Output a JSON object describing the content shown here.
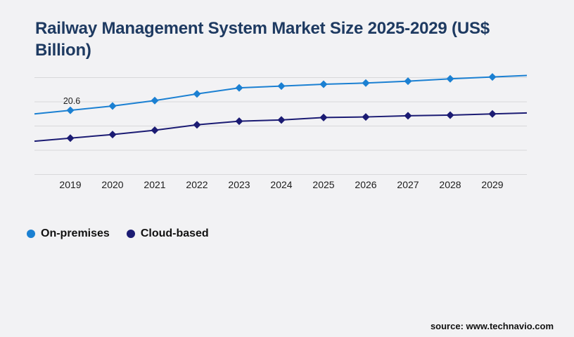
{
  "header": {
    "title": "Railway Management System Market Size 2025-2029 (US$ Billion)"
  },
  "chart_data": {
    "type": "line",
    "title": "Railway Management System Market Size 2025-2029 (US$ Billion)",
    "categories": [
      "2019",
      "2020",
      "2021",
      "2022",
      "2023",
      "2024",
      "2025",
      "2026",
      "2027",
      "2028",
      "2029"
    ],
    "series": [
      {
        "name": "On-premises",
        "color": "#1b80d2",
        "marker": "diamond",
        "values": [
          20.6,
          21.3,
          22.2,
          23.3,
          24.3,
          24.6,
          24.9,
          25.1,
          25.4,
          25.8,
          26.1
        ]
      },
      {
        "name": "Cloud-based",
        "color": "#1b1b73",
        "marker": "diamond",
        "values": [
          16.0,
          16.6,
          17.3,
          18.2,
          18.8,
          19.0,
          19.4,
          19.5,
          19.7,
          19.8,
          20.0
        ]
      }
    ],
    "annotations": [
      {
        "text": "20.6",
        "series": 0,
        "index": 0
      }
    ],
    "xlabel": "",
    "ylabel": "",
    "ylim": [
      10,
      26
    ],
    "yticks": [
      10,
      14,
      18,
      22,
      26
    ],
    "y_axis_labels_visible": false,
    "grid": "horizontal",
    "grid_color": "#d8d8da",
    "legend_position": "bottom-left"
  },
  "footer": {
    "source": "source: www.technavio.com"
  },
  "colors": {
    "background": "#f2f2f4",
    "title": "#1e3a61",
    "axis_label": "#1c1c1c",
    "annotation": "#222222"
  }
}
